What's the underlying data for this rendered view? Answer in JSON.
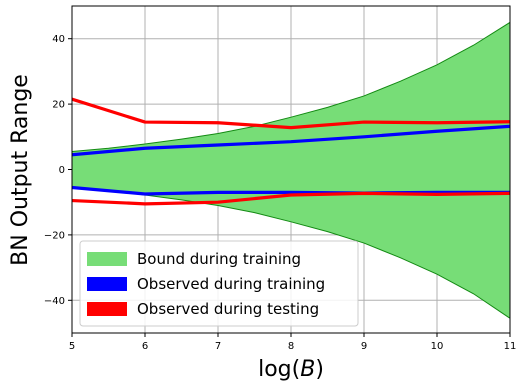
{
  "chart_data": {
    "type": "line",
    "xlabel": "log(B)",
    "ylabel": "BN Output Range",
    "xlim": [
      5,
      11
    ],
    "ylim": [
      -50,
      50
    ],
    "x_ticks": [
      5,
      6,
      7,
      8,
      9,
      10,
      11
    ],
    "y_ticks": [
      -40,
      -20,
      0,
      20,
      40
    ],
    "y_tick_labels": [
      "−40",
      "−20",
      "0",
      "20",
      "40"
    ],
    "grid": true,
    "legend_position": "lower-left",
    "band": {
      "name": "Bound during training",
      "color": "#77dd77",
      "edge_color": "#138a13",
      "x": [
        5,
        5.5,
        6,
        6.5,
        7,
        7.5,
        8,
        8.5,
        9,
        9.5,
        10,
        10.5,
        11
      ],
      "upper": [
        5.5,
        6.5,
        7.8,
        9.3,
        11.0,
        13.2,
        16.0,
        19.0,
        22.5,
        27.0,
        32.0,
        38.0,
        45.0
      ],
      "lower": [
        -5.5,
        -6.5,
        -7.8,
        -9.3,
        -11.0,
        -13.2,
        -16.0,
        -19.0,
        -22.5,
        -27.0,
        -32.0,
        -38.0,
        -45.5
      ]
    },
    "series": [
      {
        "name": "Observed during training",
        "color": "#0000ff",
        "x": [
          5,
          6,
          7,
          8,
          9,
          10,
          11
        ],
        "values": [
          4.5,
          6.5,
          7.5,
          8.5,
          10.0,
          11.7,
          13.2
        ]
      },
      {
        "name": "Observed during training",
        "color": "#0000ff",
        "x": [
          5,
          6,
          7,
          8,
          9,
          10,
          11
        ],
        "values": [
          -5.5,
          -7.5,
          -7.0,
          -7.0,
          -7.2,
          -7.0,
          -7.0
        ],
        "legend": false
      },
      {
        "name": "Observed during testing",
        "color": "#ff0000",
        "x": [
          5,
          6,
          7,
          8,
          9,
          10,
          11
        ],
        "values": [
          21.5,
          14.5,
          14.3,
          12.8,
          14.5,
          14.3,
          14.6
        ]
      },
      {
        "name": "Observed during testing",
        "color": "#ff0000",
        "x": [
          5,
          6,
          7,
          8,
          9,
          10,
          11
        ],
        "values": [
          -9.5,
          -10.5,
          -10.0,
          -7.8,
          -7.3,
          -7.6,
          -7.3
        ],
        "legend": false
      }
    ],
    "legend": [
      {
        "label": "Bound during training",
        "color": "#77dd77"
      },
      {
        "label": "Observed during training",
        "color": "#0000ff"
      },
      {
        "label": "Observed during testing",
        "color": "#ff0000"
      }
    ]
  }
}
